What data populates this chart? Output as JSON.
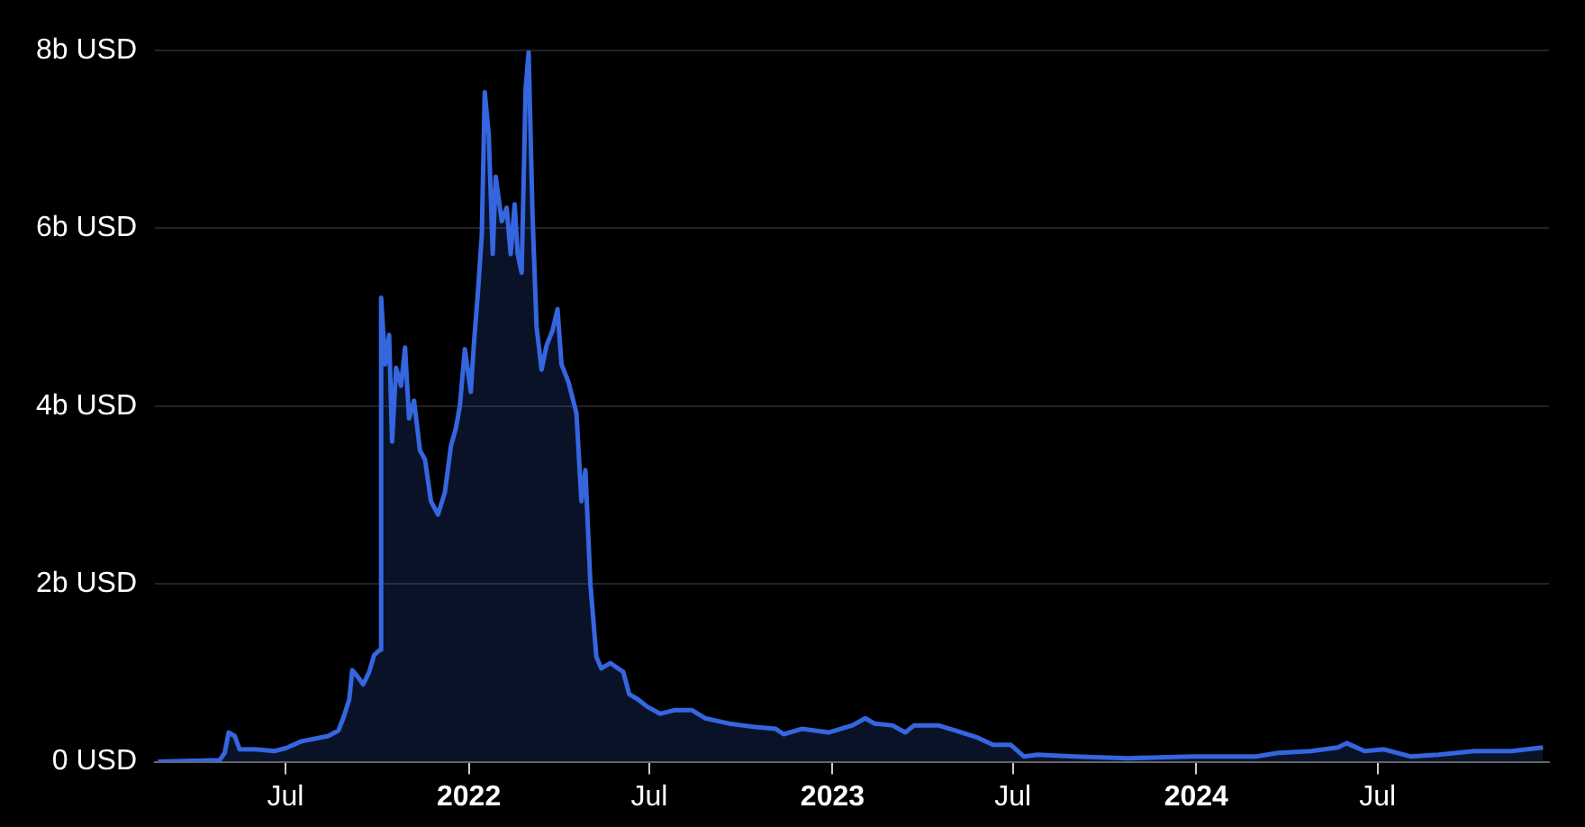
{
  "chart_data": {
    "type": "area",
    "x": [
      "2021-02-23",
      "2021-04-26",
      "2021-05-01",
      "2021-05-05",
      "2021-05-11",
      "2021-05-16",
      "2021-06-01",
      "2021-06-20",
      "2021-07-03",
      "2021-07-17",
      "2021-08-13",
      "2021-08-23",
      "2021-08-28",
      "2021-09-03",
      "2021-09-06",
      "2021-09-12",
      "2021-09-17",
      "2021-09-23",
      "2021-09-28",
      "2021-10-04",
      "2021-10-05",
      "2021-10-09",
      "2021-10-13",
      "2021-10-16",
      "2021-10-20",
      "2021-10-25",
      "2021-10-29",
      "2021-11-02",
      "2021-11-07",
      "2021-11-13",
      "2021-11-18",
      "2021-11-24",
      "2021-12-01",
      "2021-12-08",
      "2021-12-14",
      "2021-12-19",
      "2021-12-23",
      "2021-12-28",
      "2022-01-03",
      "2022-01-06",
      "2022-01-10",
      "2022-01-14",
      "2022-01-17",
      "2022-01-21",
      "2022-01-25",
      "2022-01-28",
      "2022-02-03",
      "2022-02-08",
      "2022-02-12",
      "2022-02-16",
      "2022-02-19",
      "2022-02-23",
      "2022-02-27",
      "2022-03-02",
      "2022-03-06",
      "2022-03-10",
      "2022-03-15",
      "2022-03-20",
      "2022-03-26",
      "2022-03-31",
      "2022-04-04",
      "2022-04-11",
      "2022-04-19",
      "2022-04-24",
      "2022-04-28",
      "2022-05-03",
      "2022-05-09",
      "2022-05-14",
      "2022-05-23",
      "2022-06-05",
      "2022-06-11",
      "2022-06-20",
      "2022-06-29",
      "2022-07-12",
      "2022-07-26",
      "2022-08-13",
      "2022-08-26",
      "2022-09-19",
      "2022-10-16",
      "2022-11-05",
      "2022-11-13",
      "2022-12-01",
      "2022-12-28",
      "2023-01-21",
      "2023-02-03",
      "2023-02-12",
      "2023-03-02",
      "2023-03-15",
      "2023-03-24",
      "2023-04-17",
      "2023-05-05",
      "2023-05-27",
      "2023-06-11",
      "2023-06-29",
      "2023-07-12",
      "2023-07-26",
      "2023-09-01",
      "2023-10-25",
      "2023-12-28",
      "2024-03-01",
      "2024-03-23",
      "2024-04-25",
      "2024-05-22",
      "2024-05-31",
      "2024-06-18",
      "2024-07-07",
      "2024-08-03",
      "2024-08-31",
      "2024-10-06",
      "2024-11-12",
      "2024-12-14"
    ],
    "series": [
      {
        "color": "#3566e0",
        "values": [
          0,
          0.02,
          0.1,
          0.33,
          0.29,
          0.14,
          0.14,
          0.12,
          0.16,
          0.23,
          0.29,
          0.35,
          0.49,
          0.7,
          1.03,
          0.95,
          0.87,
          1.01,
          1.2,
          1.26,
          5.22,
          4.47,
          4.8,
          3.6,
          4.43,
          4.23,
          4.66,
          3.86,
          4.06,
          3.5,
          3.4,
          2.93,
          2.78,
          3.03,
          3.55,
          3.75,
          4.0,
          4.64,
          4.16,
          4.68,
          5.26,
          5.92,
          7.53,
          7.05,
          5.71,
          6.58,
          6.08,
          6.23,
          5.71,
          6.27,
          5.71,
          5.5,
          7.57,
          7.98,
          6.12,
          4.89,
          4.41,
          4.68,
          4.85,
          5.09,
          4.47,
          4.27,
          3.92,
          2.93,
          3.28,
          2.0,
          1.18,
          1.05,
          1.11,
          1.01,
          0.76,
          0.7,
          0.62,
          0.54,
          0.58,
          0.58,
          0.49,
          0.43,
          0.39,
          0.37,
          0.31,
          0.37,
          0.33,
          0.41,
          0.49,
          0.43,
          0.41,
          0.33,
          0.41,
          0.41,
          0.35,
          0.27,
          0.19,
          0.19,
          0.06,
          0.08,
          0.06,
          0.04,
          0.06,
          0.06,
          0.1,
          0.12,
          0.16,
          0.21,
          0.12,
          0.14,
          0.06,
          0.08,
          0.12,
          0.12,
          0.16
        ]
      }
    ],
    "xlim": [
      "2021-02-20",
      "2024-12-20"
    ],
    "xticks": [
      {
        "value": "2021-07-01",
        "label": "Jul"
      },
      {
        "value": "2022-01-01",
        "label": "2022"
      },
      {
        "value": "2022-07-01",
        "label": "Jul"
      },
      {
        "value": "2023-01-01",
        "label": "2023"
      },
      {
        "value": "2023-07-01",
        "label": "Jul"
      },
      {
        "value": "2024-01-01",
        "label": "2024"
      },
      {
        "value": "2024-07-01",
        "label": "Jul"
      }
    ],
    "ylim": [
      0,
      8
    ],
    "yticks": [
      {
        "value": 0,
        "label": "0 USD"
      },
      {
        "value": 2,
        "label": "2b USD"
      },
      {
        "value": 4,
        "label": "4b USD"
      },
      {
        "value": 6,
        "label": "6b USD"
      },
      {
        "value": 8,
        "label": "8b USD"
      }
    ],
    "grid": "y"
  }
}
